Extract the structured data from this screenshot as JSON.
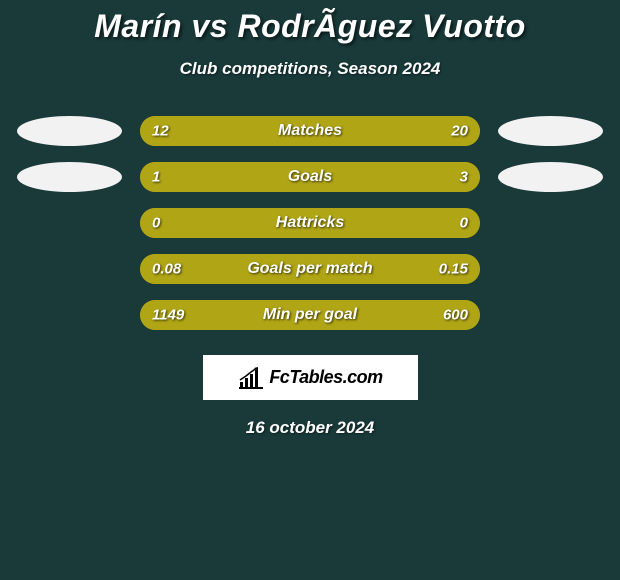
{
  "background_color": "#1a3a3a",
  "header": {
    "title": "Marín vs RodrÃ­guez Vuotto",
    "title_fontsize": 32,
    "title_color": "#ffffff",
    "subtitle": "Club competitions, Season 2024",
    "subtitle_fontsize": 17
  },
  "colors": {
    "left_fill": "#b0a515",
    "right_fill": "#b0a515",
    "bar_bg": "#b0a515",
    "badge_left": "#f2f2f2",
    "badge_right": "#f2f2f2",
    "text": "#ffffff"
  },
  "rows": [
    {
      "label": "Matches",
      "left_value": "12",
      "right_value": "20",
      "left_pct": 37.5,
      "show_badges": true
    },
    {
      "label": "Goals",
      "left_value": "1",
      "right_value": "3",
      "left_pct": 25,
      "show_badges": true
    },
    {
      "label": "Hattricks",
      "left_value": "0",
      "right_value": "0",
      "left_pct": 50,
      "show_badges": false
    },
    {
      "label": "Goals per match",
      "left_value": "0.08",
      "right_value": "0.15",
      "left_pct": 34.8,
      "show_badges": false
    },
    {
      "label": "Min per goal",
      "left_value": "1149",
      "right_value": "600",
      "left_pct": 65.7,
      "show_badges": false
    }
  ],
  "footer": {
    "logo_text": "FcTables.com",
    "date": "16 october 2024"
  }
}
